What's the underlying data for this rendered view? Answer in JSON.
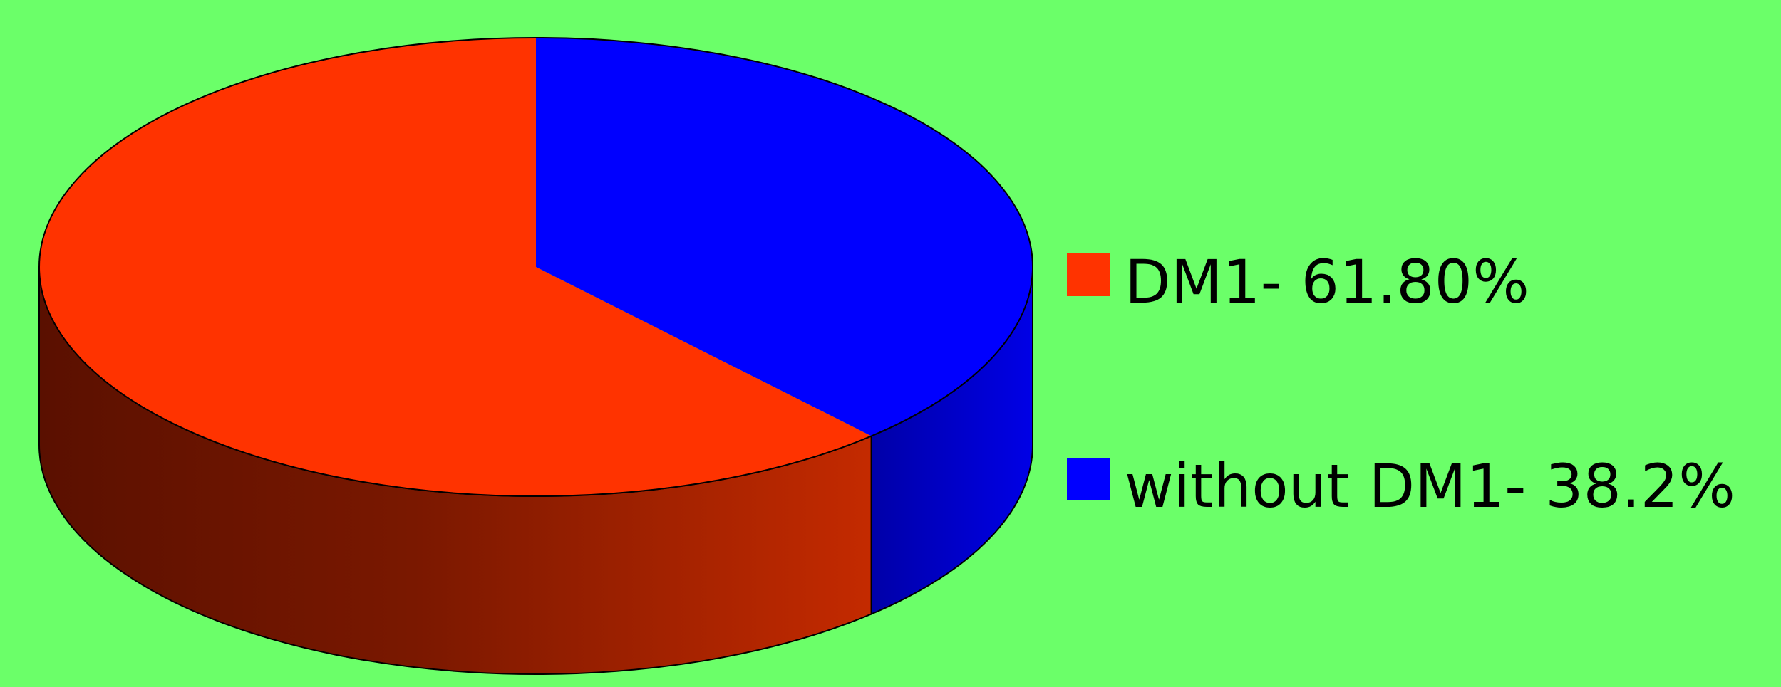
{
  "background_color": "#6bff69",
  "chart_data": {
    "type": "pie",
    "style": "3d",
    "title": "",
    "legend_position": "right",
    "slices": [
      {
        "label": "DM1- 61.80%",
        "value": 61.8,
        "color": "#ff3300"
      },
      {
        "label": "without DM1- 38.2%",
        "value": 38.2,
        "color": "#0000ff"
      }
    ]
  }
}
